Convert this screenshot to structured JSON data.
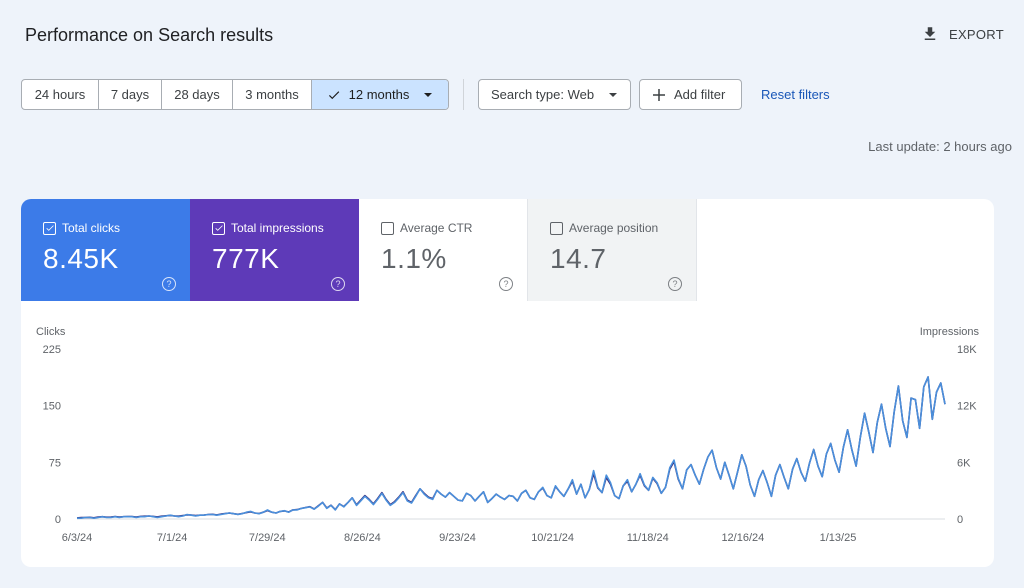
{
  "header": {
    "title": "Performance on Search results",
    "export_label": "EXPORT"
  },
  "filters": {
    "ranges": [
      "24 hours",
      "7 days",
      "28 days",
      "3 months",
      "12 months"
    ],
    "search_type": "Search type: Web",
    "add_filter": "Add filter",
    "reset": "Reset filters"
  },
  "last_update": "Last update: 2 hours ago",
  "metrics": {
    "clicks": {
      "label": "Total clicks",
      "value": "8.45K"
    },
    "impressions": {
      "label": "Total impressions",
      "value": "777K"
    },
    "ctr": {
      "label": "Average CTR",
      "value": "1.1%"
    },
    "position": {
      "label": "Average position",
      "value": "14.7"
    }
  },
  "help_glyph": "?",
  "colors": {
    "clicks": "#3c7be8",
    "impressions": "#5e3ab8",
    "clicks_line": "#4a8fdb",
    "impressions_line": "#3b2a78"
  },
  "chart_data": {
    "type": "line",
    "left_axis_label": "Clicks",
    "right_axis_label": "Impressions",
    "left_ticks": [
      "225",
      "150",
      "75",
      "0"
    ],
    "right_ticks": [
      "18K",
      "12K",
      "6K",
      "0"
    ],
    "left_range": [
      0,
      225
    ],
    "right_range": [
      0,
      18000
    ],
    "x_ticks": [
      "6/3/24",
      "7/1/24",
      "7/29/24",
      "8/26/24",
      "9/23/24",
      "10/21/24",
      "11/18/24",
      "12/16/24",
      "1/13/25"
    ],
    "x_domain_weeks": [
      0,
      36.5
    ],
    "series": [
      {
        "name": "Total clicks",
        "axis": "left",
        "color": "#4a8fdb",
        "values": [
          1,
          1,
          2,
          2,
          1,
          2,
          3,
          2,
          2,
          3,
          2,
          3,
          3,
          3,
          2,
          3,
          3,
          4,
          3,
          2,
          3,
          4,
          5,
          4,
          3,
          4,
          6,
          5,
          4,
          5,
          5,
          6,
          6,
          5,
          6,
          7,
          8,
          7,
          6,
          7,
          9,
          10,
          8,
          7,
          9,
          12,
          9,
          8,
          10,
          11,
          9,
          12,
          12,
          14,
          15,
          16,
          13,
          17,
          22,
          14,
          18,
          12,
          20,
          16,
          22,
          28,
          18,
          24,
          30,
          25,
          19,
          26,
          34,
          25,
          18,
          22,
          28,
          35,
          24,
          21,
          30,
          40,
          33,
          28,
          26,
          38,
          33,
          29,
          35,
          30,
          25,
          24,
          34,
          31,
          24,
          30,
          36,
          22,
          27,
          33,
          29,
          26,
          31,
          30,
          24,
          34,
          38,
          28,
          26,
          36,
          42,
          31,
          28,
          44,
          36,
          30,
          40,
          52,
          33,
          46,
          28,
          39,
          64,
          42,
          35,
          58,
          48,
          31,
          27,
          44,
          52,
          36,
          46,
          60,
          45,
          38,
          55,
          48,
          34,
          42,
          68,
          78,
          54,
          40,
          65,
          72,
          58,
          46,
          66,
          82,
          91,
          68,
          53,
          75,
          58,
          40,
          62,
          85,
          70,
          45,
          30,
          52,
          64,
          48,
          30,
          58,
          72,
          55,
          40,
          66,
          80,
          62,
          50,
          74,
          92,
          70,
          56,
          86,
          100,
          78,
          62,
          95,
          118,
          92,
          70,
          108,
          140,
          115,
          88,
          128,
          152,
          120,
          96,
          142,
          176,
          130,
          108,
          160,
          158,
          120,
          175,
          188,
          132,
          168,
          180,
          152
        ]
      },
      {
        "name": "Total impressions",
        "axis": "right",
        "color": "#3b2a78",
        "values": [
          120,
          150,
          160,
          180,
          130,
          200,
          240,
          190,
          210,
          260,
          200,
          240,
          250,
          260,
          200,
          280,
          300,
          320,
          280,
          220,
          300,
          340,
          380,
          330,
          300,
          360,
          450,
          420,
          360,
          400,
          420,
          480,
          500,
          430,
          520,
          580,
          620,
          560,
          500,
          580,
          680,
          760,
          640,
          580,
          720,
          900,
          720,
          640,
          800,
          860,
          740,
          960,
          1000,
          1120,
          1220,
          1300,
          1060,
          1400,
          1760,
          1160,
          1460,
          1000,
          1600,
          1320,
          1760,
          2240,
          1500,
          2000,
          2480,
          2080,
          1600,
          2160,
          2800,
          2080,
          1520,
          1840,
          2320,
          2880,
          2000,
          1760,
          2480,
          3200,
          2720,
          2320,
          2160,
          3040,
          2640,
          2320,
          2800,
          2400,
          2000,
          1920,
          2720,
          2480,
          1920,
          2400,
          2880,
          1760,
          2160,
          2640,
          2320,
          2080,
          2480,
          2400,
          1920,
          2720,
          3040,
          2240,
          2080,
          2880,
          3280,
          2480,
          2240,
          3440,
          2880,
          2400,
          3200,
          4000,
          2640,
          3680,
          2240,
          3120,
          4800,
          3280,
          2800,
          4400,
          3680,
          2480,
          2160,
          3520,
          4000,
          2880,
          3680,
          4640,
          3520,
          3040,
          4320,
          3760,
          2720,
          3360,
          5280,
          6080,
          4240,
          3200,
          5200,
          5760,
          4640,
          3680,
          5280,
          6560,
          7280,
          5440,
          4240,
          6000,
          4640,
          3200,
          4960,
          6800,
          5600,
          3600,
          2400,
          4160,
          5120,
          3840,
          2400,
          4640,
          5760,
          4400,
          3200,
          5280,
          6400,
          4960,
          4000,
          5920,
          7360,
          5600,
          4480,
          6880,
          8000,
          6240,
          4960,
          7600,
          9440,
          7360,
          5600,
          8640,
          11200,
          9200,
          7040,
          10240,
          12160,
          9600,
          7680,
          11360,
          14080,
          10400,
          8640,
          12800,
          12640,
          9600,
          14000,
          15040,
          10560,
          13440,
          14400,
          12160
        ]
      }
    ]
  }
}
